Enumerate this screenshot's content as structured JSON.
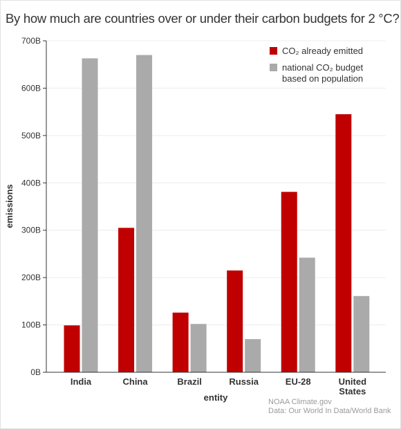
{
  "title": "By how much are countries over or under their carbon budgets for 2 °C?",
  "source_lines": [
    "NOAA Climate.gov",
    "Data: Our World In Data/World Bank"
  ],
  "chart_data": {
    "type": "bar",
    "categories": [
      "India",
      "China",
      "Brazil",
      "Russia",
      "EU-28",
      "United States"
    ],
    "series": [
      {
        "name": "CO₂ already emitted",
        "color": "#c00000",
        "values": [
          99,
          305,
          126,
          215,
          381,
          545
        ]
      },
      {
        "name": "national CO₂ budget based on population",
        "color": "#aaaaaa",
        "values": [
          663,
          670,
          102,
          70,
          242,
          161
        ]
      }
    ],
    "xlabel": "entity",
    "ylabel": "emissions",
    "ylim": [
      0,
      700
    ],
    "yticks": [
      {
        "value": 0,
        "label": "0B"
      },
      {
        "value": 100,
        "label": "100B"
      },
      {
        "value": 200,
        "label": "200B"
      },
      {
        "value": 300,
        "label": "300B"
      },
      {
        "value": 400,
        "label": "400B"
      },
      {
        "value": 500,
        "label": "500B"
      },
      {
        "value": 600,
        "label": "600B"
      },
      {
        "value": 700,
        "label": "700B"
      }
    ],
    "grid": true,
    "legend_position": "top-right"
  }
}
